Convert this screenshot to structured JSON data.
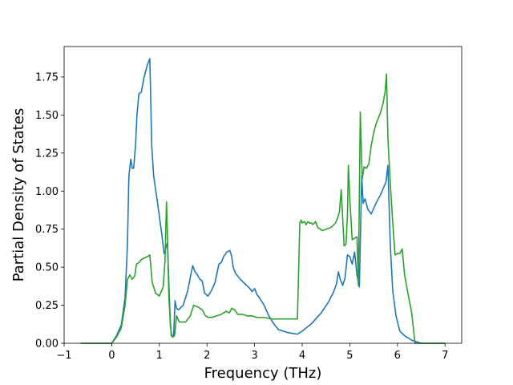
{
  "chart_data": {
    "type": "line",
    "xlabel": "Frequency (THz)",
    "ylabel": "Partial Density of States",
    "xlim": [
      -1,
      7.35
    ],
    "ylim": [
      0,
      1.95
    ],
    "xticks": [
      "−1",
      "0",
      "1",
      "2",
      "3",
      "4",
      "5",
      "6",
      "7"
    ],
    "yticks": [
      "0.00",
      "0.25",
      "0.50",
      "0.75",
      "1.00",
      "1.25",
      "1.50",
      "1.75"
    ],
    "xtick_values": [
      -1,
      0,
      1,
      2,
      3,
      4,
      5,
      6,
      7
    ],
    "ytick_values": [
      0,
      0.25,
      0.5,
      0.75,
      1.0,
      1.25,
      1.5,
      1.75
    ],
    "grid": false,
    "series": [
      {
        "color": "#1f77b4",
        "x": [
          -0.65,
          -0.3,
          0.0,
          0.1,
          0.2,
          0.28,
          0.33,
          0.36,
          0.4,
          0.43,
          0.46,
          0.5,
          0.53,
          0.57,
          0.62,
          0.68,
          0.75,
          0.8,
          0.84,
          0.88,
          0.95,
          1.05,
          1.1,
          1.13,
          1.17,
          1.2,
          1.23,
          1.26,
          1.3,
          1.33,
          1.36,
          1.4,
          1.5,
          1.6,
          1.66,
          1.7,
          1.75,
          1.8,
          1.85,
          1.9,
          1.95,
          2.02,
          2.1,
          2.17,
          2.25,
          2.3,
          2.35,
          2.42,
          2.48,
          2.52,
          2.55,
          2.6,
          2.7,
          2.8,
          2.9,
          2.95,
          3.0,
          3.05,
          3.1,
          3.2,
          3.3,
          3.4,
          3.5,
          3.6,
          3.7,
          3.9,
          4.0,
          4.2,
          4.4,
          4.55,
          4.65,
          4.72,
          4.76,
          4.8,
          4.85,
          4.9,
          4.95,
          5.0,
          5.05,
          5.1,
          5.15,
          5.2,
          5.25,
          5.28,
          5.32,
          5.38,
          5.45,
          5.55,
          5.65,
          5.72,
          5.76,
          5.8,
          5.85,
          5.9,
          5.97,
          6.05,
          6.15,
          6.3,
          6.5,
          7.0
        ],
        "y": [
          0,
          0,
          0.0,
          0.05,
          0.12,
          0.3,
          0.65,
          1.1,
          1.21,
          1.15,
          1.15,
          1.3,
          1.5,
          1.64,
          1.65,
          1.75,
          1.83,
          1.87,
          1.3,
          1.1,
          0.95,
          0.72,
          0.59,
          0.62,
          0.66,
          0.4,
          0.12,
          0.05,
          0.05,
          0.28,
          0.23,
          0.22,
          0.25,
          0.35,
          0.45,
          0.51,
          0.47,
          0.45,
          0.42,
          0.41,
          0.33,
          0.31,
          0.35,
          0.4,
          0.52,
          0.53,
          0.57,
          0.6,
          0.61,
          0.57,
          0.5,
          0.46,
          0.42,
          0.39,
          0.36,
          0.34,
          0.36,
          0.32,
          0.3,
          0.25,
          0.18,
          0.13,
          0.09,
          0.08,
          0.07,
          0.06,
          0.08,
          0.13,
          0.2,
          0.27,
          0.33,
          0.39,
          0.47,
          0.42,
          0.38,
          0.43,
          0.58,
          0.57,
          0.52,
          0.6,
          0.45,
          0.37,
          1.1,
          0.92,
          0.95,
          0.88,
          0.85,
          0.92,
          0.98,
          1.03,
          1.06,
          1.17,
          0.65,
          0.35,
          0.18,
          0.08,
          0.05,
          0.02,
          0.0,
          0.0
        ]
      },
      {
        "color": "#2ca02c",
        "x": [
          -0.65,
          -0.3,
          0.0,
          0.1,
          0.2,
          0.28,
          0.33,
          0.38,
          0.43,
          0.48,
          0.52,
          0.57,
          0.62,
          0.68,
          0.75,
          0.8,
          0.85,
          0.92,
          1.0,
          1.08,
          1.12,
          1.15,
          1.17,
          1.2,
          1.25,
          1.28,
          1.32,
          1.36,
          1.42,
          1.55,
          1.65,
          1.72,
          1.8,
          1.9,
          1.97,
          2.03,
          2.1,
          2.2,
          2.3,
          2.4,
          2.47,
          2.52,
          2.58,
          2.65,
          2.75,
          2.85,
          2.95,
          3.05,
          3.2,
          3.35,
          3.5,
          3.7,
          3.9,
          3.95,
          3.98,
          4.0,
          4.05,
          4.08,
          4.12,
          4.15,
          4.2,
          4.22,
          4.26,
          4.28,
          4.33,
          4.38,
          4.42,
          4.5,
          4.6,
          4.7,
          4.74,
          4.78,
          4.82,
          4.88,
          4.92,
          4.95,
          4.97,
          5.0,
          5.05,
          5.1,
          5.15,
          5.18,
          5.22,
          5.26,
          5.3,
          5.35,
          5.4,
          5.45,
          5.5,
          5.55,
          5.6,
          5.65,
          5.7,
          5.74,
          5.77,
          5.8,
          5.85,
          5.9,
          5.95,
          6.0,
          6.05,
          6.1,
          6.15,
          6.22,
          6.3,
          6.37,
          6.5,
          7.0
        ],
        "y": [
          0,
          0,
          0.0,
          0.04,
          0.1,
          0.25,
          0.42,
          0.45,
          0.42,
          0.44,
          0.52,
          0.53,
          0.55,
          0.56,
          0.57,
          0.58,
          0.4,
          0.33,
          0.31,
          0.37,
          0.55,
          0.93,
          0.72,
          0.3,
          0.05,
          0.04,
          0.05,
          0.18,
          0.14,
          0.14,
          0.18,
          0.25,
          0.24,
          0.22,
          0.18,
          0.17,
          0.17,
          0.18,
          0.19,
          0.21,
          0.2,
          0.23,
          0.22,
          0.19,
          0.19,
          0.18,
          0.18,
          0.17,
          0.17,
          0.16,
          0.16,
          0.16,
          0.16,
          0.79,
          0.81,
          0.79,
          0.8,
          0.78,
          0.8,
          0.79,
          0.79,
          0.78,
          0.79,
          0.8,
          0.76,
          0.75,
          0.74,
          0.75,
          0.76,
          0.79,
          0.82,
          0.86,
          1.01,
          0.64,
          0.65,
          0.84,
          1.17,
          0.95,
          0.68,
          0.69,
          0.7,
          0.38,
          1.52,
          1.08,
          1.16,
          1.15,
          1.18,
          1.3,
          1.38,
          1.44,
          1.48,
          1.52,
          1.58,
          1.65,
          1.77,
          1.35,
          1.05,
          0.8,
          0.58,
          0.59,
          0.59,
          0.62,
          0.45,
          0.33,
          0.2,
          0.0,
          0.0,
          0.0
        ]
      }
    ]
  }
}
